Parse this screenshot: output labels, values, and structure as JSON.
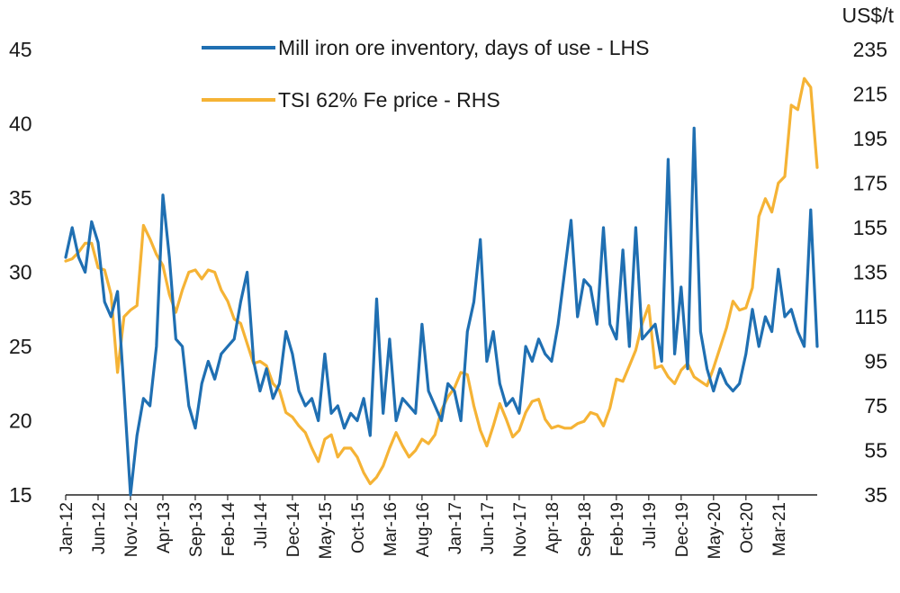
{
  "chart_data": {
    "type": "line",
    "title": "",
    "xlabel": "",
    "ylabel_left": "",
    "ylabel_right": "US$/t",
    "x_tick_labels": [
      "Jan-12",
      "Jun-12",
      "Nov-12",
      "Apr-13",
      "Sep-13",
      "Feb-14",
      "Jul-14",
      "Dec-14",
      "May-15",
      "Oct-15",
      "Mar-16",
      "Aug-16",
      "Jan-17",
      "Jun-17",
      "Nov-17",
      "Apr-18",
      "Sep-18",
      "Feb-19",
      "Jul-19",
      "Dec-19",
      "May-20",
      "Oct-20",
      "Mar-21"
    ],
    "x_range": [
      "Jan-12",
      "Sep-21"
    ],
    "ylim_left": [
      15,
      45
    ],
    "yticks_left": [
      15,
      20,
      25,
      30,
      35,
      40,
      45
    ],
    "ylim_right": [
      35,
      235
    ],
    "yticks_right": [
      35,
      55,
      75,
      95,
      115,
      135,
      155,
      175,
      195,
      215,
      235
    ],
    "grid": false,
    "legend_position": "top-center",
    "series": [
      {
        "name": "Mill iron ore inventory, days of use - LHS",
        "axis": "left",
        "color": "#1f6fb2",
        "points": [
          [
            "Jan-12",
            31.0
          ],
          [
            "Feb-12",
            33.0
          ],
          [
            "Mar-12",
            31.0
          ],
          [
            "Apr-12",
            30.0
          ],
          [
            "May-12",
            33.4
          ],
          [
            "Jun-12",
            32.0
          ],
          [
            "Jul-12",
            28.0
          ],
          [
            "Aug-12",
            27.0
          ],
          [
            "Sep-12",
            28.7
          ],
          [
            "Oct-12",
            22.0
          ],
          [
            "Nov-12",
            15.0
          ],
          [
            "Dec-12",
            19.0
          ],
          [
            "Jan-13",
            21.5
          ],
          [
            "Feb-13",
            21.0
          ],
          [
            "Mar-13",
            25.0
          ],
          [
            "Apr-13",
            35.2
          ],
          [
            "May-13",
            31.0
          ],
          [
            "Jun-13",
            25.5
          ],
          [
            "Jul-13",
            25.0
          ],
          [
            "Aug-13",
            21.0
          ],
          [
            "Sep-13",
            19.5
          ],
          [
            "Oct-13",
            22.5
          ],
          [
            "Nov-13",
            24.0
          ],
          [
            "Dec-13",
            22.8
          ],
          [
            "Jan-14",
            24.5
          ],
          [
            "Feb-14",
            25.0
          ],
          [
            "Mar-14",
            25.5
          ],
          [
            "Apr-14",
            28.0
          ],
          [
            "May-14",
            30.0
          ],
          [
            "Jun-14",
            24.0
          ],
          [
            "Jul-14",
            22.0
          ],
          [
            "Aug-14",
            23.5
          ],
          [
            "Sep-14",
            21.5
          ],
          [
            "Oct-14",
            22.5
          ],
          [
            "Nov-14",
            26.0
          ],
          [
            "Dec-14",
            24.5
          ],
          [
            "Jan-15",
            22.0
          ],
          [
            "Feb-15",
            21.0
          ],
          [
            "Mar-15",
            21.5
          ],
          [
            "Apr-15",
            20.0
          ],
          [
            "May-15",
            24.5
          ],
          [
            "Jun-15",
            20.5
          ],
          [
            "Jul-15",
            21.0
          ],
          [
            "Aug-15",
            19.5
          ],
          [
            "Sep-15",
            20.5
          ],
          [
            "Oct-15",
            20.0
          ],
          [
            "Nov-15",
            21.5
          ],
          [
            "Dec-15",
            19.0
          ],
          [
            "Jan-16",
            28.2
          ],
          [
            "Feb-16",
            20.5
          ],
          [
            "Mar-16",
            25.5
          ],
          [
            "Apr-16",
            20.0
          ],
          [
            "May-16",
            21.5
          ],
          [
            "Jun-16",
            21.0
          ],
          [
            "Jul-16",
            20.5
          ],
          [
            "Aug-16",
            26.5
          ],
          [
            "Sep-16",
            22.0
          ],
          [
            "Oct-16",
            21.0
          ],
          [
            "Nov-16",
            20.0
          ],
          [
            "Dec-16",
            22.5
          ],
          [
            "Jan-17",
            22.0
          ],
          [
            "Feb-17",
            20.0
          ],
          [
            "Mar-17",
            26.0
          ],
          [
            "Apr-17",
            28.0
          ],
          [
            "May-17",
            32.2
          ],
          [
            "Jun-17",
            24.0
          ],
          [
            "Jul-17",
            26.0
          ],
          [
            "Aug-17",
            22.5
          ],
          [
            "Sep-17",
            21.0
          ],
          [
            "Oct-17",
            21.5
          ],
          [
            "Nov-17",
            20.5
          ],
          [
            "Dec-17",
            25.0
          ],
          [
            "Jan-18",
            24.0
          ],
          [
            "Feb-18",
            25.5
          ],
          [
            "Mar-18",
            24.5
          ],
          [
            "Apr-18",
            24.0
          ],
          [
            "May-18",
            26.5
          ],
          [
            "Jun-18",
            30.0
          ],
          [
            "Jul-18",
            33.5
          ],
          [
            "Aug-18",
            27.0
          ],
          [
            "Sep-18",
            29.5
          ],
          [
            "Oct-18",
            29.0
          ],
          [
            "Nov-18",
            26.5
          ],
          [
            "Dec-18",
            33.0
          ],
          [
            "Jan-19",
            26.5
          ],
          [
            "Feb-19",
            25.5
          ],
          [
            "Mar-19",
            31.5
          ],
          [
            "Apr-19",
            25.0
          ],
          [
            "May-19",
            33.0
          ],
          [
            "Jun-19",
            25.5
          ],
          [
            "Jul-19",
            26.0
          ],
          [
            "Aug-19",
            26.5
          ],
          [
            "Sep-19",
            24.0
          ],
          [
            "Oct-19",
            37.6
          ],
          [
            "Nov-19",
            24.5
          ],
          [
            "Dec-19",
            29.0
          ],
          [
            "Jan-20",
            23.5
          ],
          [
            "Feb-20",
            39.7
          ],
          [
            "Mar-20",
            26.0
          ],
          [
            "Apr-20",
            23.5
          ],
          [
            "May-20",
            22.0
          ],
          [
            "Jun-20",
            23.5
          ],
          [
            "Jul-20",
            22.5
          ],
          [
            "Aug-20",
            22.0
          ],
          [
            "Sep-20",
            22.5
          ],
          [
            "Oct-20",
            24.5
          ],
          [
            "Nov-20",
            27.5
          ],
          [
            "Dec-20",
            25.0
          ],
          [
            "Jan-21",
            27.0
          ],
          [
            "Feb-21",
            26.0
          ],
          [
            "Mar-21",
            30.2
          ],
          [
            "Apr-21",
            27.0
          ],
          [
            "May-21",
            27.5
          ],
          [
            "Jun-21",
            26.0
          ],
          [
            "Jul-21",
            25.0
          ],
          [
            "Aug-21",
            34.2
          ],
          [
            "Sep-21",
            25.0
          ]
        ]
      },
      {
        "name": "TSI 62% Fe price - RHS",
        "axis": "right",
        "color": "#f5b335",
        "points": [
          [
            "Jan-12",
            140
          ],
          [
            "Feb-12",
            141
          ],
          [
            "Mar-12",
            144
          ],
          [
            "Apr-12",
            148
          ],
          [
            "May-12",
            148
          ],
          [
            "Jun-12",
            137
          ],
          [
            "Jul-12",
            136
          ],
          [
            "Aug-12",
            125
          ],
          [
            "Sep-12",
            90
          ],
          [
            "Oct-12",
            115
          ],
          [
            "Nov-12",
            118
          ],
          [
            "Dec-12",
            120
          ],
          [
            "Jan-13",
            156
          ],
          [
            "Feb-13",
            150
          ],
          [
            "Mar-13",
            143
          ],
          [
            "Apr-13",
            138
          ],
          [
            "May-13",
            125
          ],
          [
            "Jun-13",
            117
          ],
          [
            "Jul-13",
            127
          ],
          [
            "Aug-13",
            135
          ],
          [
            "Sep-13",
            136
          ],
          [
            "Oct-13",
            132
          ],
          [
            "Nov-13",
            136
          ],
          [
            "Dec-13",
            135
          ],
          [
            "Jan-14",
            127
          ],
          [
            "Feb-14",
            122
          ],
          [
            "Mar-14",
            114
          ],
          [
            "Apr-14",
            112
          ],
          [
            "May-14",
            103
          ],
          [
            "Jun-14",
            94
          ],
          [
            "Jul-14",
            95
          ],
          [
            "Aug-14",
            93
          ],
          [
            "Sep-14",
            85
          ],
          [
            "Oct-14",
            82
          ],
          [
            "Nov-14",
            72
          ],
          [
            "Dec-14",
            70
          ],
          [
            "Jan-15",
            66
          ],
          [
            "Feb-15",
            63
          ],
          [
            "Mar-15",
            56
          ],
          [
            "Apr-15",
            50
          ],
          [
            "May-15",
            60
          ],
          [
            "Jun-15",
            62
          ],
          [
            "Jul-15",
            52
          ],
          [
            "Aug-15",
            56
          ],
          [
            "Sep-15",
            56
          ],
          [
            "Oct-15",
            52
          ],
          [
            "Nov-15",
            45
          ],
          [
            "Dec-15",
            40
          ],
          [
            "Jan-16",
            43
          ],
          [
            "Feb-16",
            48
          ],
          [
            "Mar-16",
            56
          ],
          [
            "Apr-16",
            63
          ],
          [
            "May-16",
            57
          ],
          [
            "Jun-16",
            52
          ],
          [
            "Jul-16",
            55
          ],
          [
            "Aug-16",
            60
          ],
          [
            "Sep-16",
            58
          ],
          [
            "Oct-16",
            62
          ],
          [
            "Nov-16",
            73
          ],
          [
            "Dec-16",
            79
          ],
          [
            "Jan-17",
            83
          ],
          [
            "Feb-17",
            90
          ],
          [
            "Mar-17",
            89
          ],
          [
            "Apr-17",
            75
          ],
          [
            "May-17",
            64
          ],
          [
            "Jun-17",
            57
          ],
          [
            "Jul-17",
            66
          ],
          [
            "Aug-17",
            76
          ],
          [
            "Sep-17",
            69
          ],
          [
            "Oct-17",
            61
          ],
          [
            "Nov-17",
            64
          ],
          [
            "Dec-17",
            72
          ],
          [
            "Jan-18",
            77
          ],
          [
            "Feb-18",
            78
          ],
          [
            "Mar-18",
            69
          ],
          [
            "Apr-18",
            65
          ],
          [
            "May-18",
            66
          ],
          [
            "Jun-18",
            65
          ],
          [
            "Jul-18",
            65
          ],
          [
            "Aug-18",
            67
          ],
          [
            "Sep-18",
            68
          ],
          [
            "Oct-18",
            72
          ],
          [
            "Nov-18",
            71
          ],
          [
            "Dec-18",
            66
          ],
          [
            "Jan-19",
            74
          ],
          [
            "Feb-19",
            87
          ],
          [
            "Mar-19",
            86
          ],
          [
            "Apr-19",
            93
          ],
          [
            "May-19",
            100
          ],
          [
            "Jun-19",
            112
          ],
          [
            "Jul-19",
            120
          ],
          [
            "Aug-19",
            92
          ],
          [
            "Sep-19",
            93
          ],
          [
            "Oct-19",
            88
          ],
          [
            "Nov-19",
            85
          ],
          [
            "Dec-19",
            91
          ],
          [
            "Jan-20",
            94
          ],
          [
            "Feb-20",
            88
          ],
          [
            "Mar-20",
            86
          ],
          [
            "Apr-20",
            84
          ],
          [
            "May-20",
            92
          ],
          [
            "Jun-20",
            101
          ],
          [
            "Jul-20",
            110
          ],
          [
            "Aug-20",
            122
          ],
          [
            "Sep-20",
            118
          ],
          [
            "Oct-20",
            119
          ],
          [
            "Nov-20",
            128
          ],
          [
            "Dec-20",
            160
          ],
          [
            "Jan-21",
            168
          ],
          [
            "Feb-21",
            162
          ],
          [
            "Mar-21",
            175
          ],
          [
            "Apr-21",
            178
          ],
          [
            "May-21",
            210
          ],
          [
            "Jun-21",
            208
          ],
          [
            "Jul-21",
            222
          ],
          [
            "Aug-21",
            218
          ],
          [
            "Sep-21",
            182
          ]
        ]
      }
    ]
  }
}
